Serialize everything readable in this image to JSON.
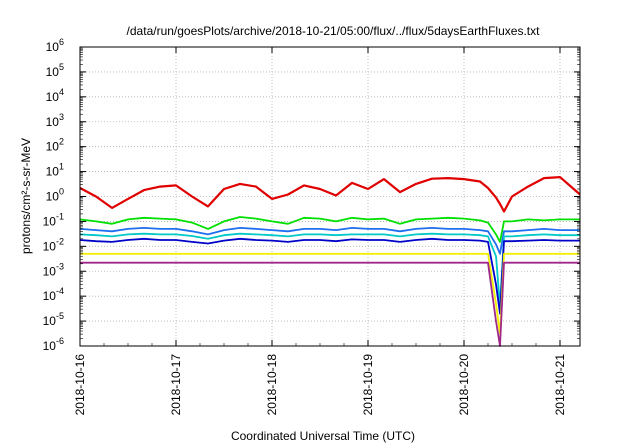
{
  "chart_data": {
    "type": "line",
    "title": "/data/run/goesPlots/archive/2018-10-21/05:00/flux/../flux/5daysEarthFluxes.txt",
    "xlabel": "Coordinated Universal Time (UTC)",
    "ylabel": "protons/cm²-s-sr-MeV",
    "yscale": "log",
    "ylim": [
      1e-06,
      1000000.0
    ],
    "xlim": [
      "2018-10-16T00:00",
      "2018-10-21T05:00"
    ],
    "grid": true,
    "legend": "none",
    "x_ticks": [
      "2018-10-16",
      "2018-10-17",
      "2018-10-18",
      "2018-10-19",
      "2018-10-20",
      "2018-10-21"
    ],
    "y_ticks": [
      {
        "base": "10",
        "exp": "-6"
      },
      {
        "base": "10",
        "exp": "-5"
      },
      {
        "base": "10",
        "exp": "-4"
      },
      {
        "base": "10",
        "exp": "-3"
      },
      {
        "base": "10",
        "exp": "-2"
      },
      {
        "base": "10",
        "exp": "-1"
      },
      {
        "base": "10",
        "exp": "0"
      },
      {
        "base": "10",
        "exp": "1"
      },
      {
        "base": "10",
        "exp": "2"
      },
      {
        "base": "10",
        "exp": "3"
      },
      {
        "base": "10",
        "exp": "4"
      },
      {
        "base": "10",
        "exp": "5"
      },
      {
        "base": "10",
        "exp": "6"
      }
    ],
    "x": [
      "2018-10-16T00:00",
      "2018-10-16T04:00",
      "2018-10-16T08:00",
      "2018-10-16T12:00",
      "2018-10-16T16:00",
      "2018-10-16T20:00",
      "2018-10-17T00:00",
      "2018-10-17T04:00",
      "2018-10-17T08:00",
      "2018-10-17T12:00",
      "2018-10-17T16:00",
      "2018-10-17T20:00",
      "2018-10-18T00:00",
      "2018-10-18T04:00",
      "2018-10-18T08:00",
      "2018-10-18T12:00",
      "2018-10-18T16:00",
      "2018-10-18T20:00",
      "2018-10-19T00:00",
      "2018-10-19T04:00",
      "2018-10-19T08:00",
      "2018-10-19T12:00",
      "2018-10-19T16:00",
      "2018-10-19T20:00",
      "2018-10-20T00:00",
      "2018-10-20T04:00",
      "2018-10-20T06:00",
      "2018-10-20T08:00",
      "2018-10-20T09:00",
      "2018-10-20T10:00",
      "2018-10-20T12:00",
      "2018-10-20T16:00",
      "2018-10-20T20:00",
      "2018-10-21T00:00",
      "2018-10-21T05:00"
    ],
    "series": [
      {
        "color": "#e00000",
        "values": [
          2.2,
          1.0,
          0.35,
          0.8,
          1.8,
          2.5,
          2.8,
          1.0,
          0.4,
          2.0,
          3.2,
          2.5,
          0.8,
          1.2,
          2.8,
          2.0,
          1.1,
          3.5,
          2.0,
          5.0,
          1.5,
          3.2,
          5.2,
          5.5,
          5.0,
          4.0,
          2.2,
          0.9,
          0.5,
          0.25,
          1.0,
          2.5,
          5.5,
          6.0,
          1.2
        ]
      },
      {
        "color": "#00e000",
        "values": [
          0.12,
          0.1,
          0.08,
          0.12,
          0.14,
          0.13,
          0.12,
          0.09,
          0.05,
          0.1,
          0.15,
          0.13,
          0.1,
          0.08,
          0.14,
          0.13,
          0.1,
          0.14,
          0.12,
          0.13,
          0.08,
          0.12,
          0.13,
          0.14,
          0.13,
          0.11,
          0.09,
          0.03,
          0.015,
          0.1,
          0.1,
          0.12,
          0.11,
          0.12,
          0.12
        ]
      },
      {
        "color": "#1e6ef0",
        "values": [
          0.05,
          0.045,
          0.04,
          0.05,
          0.055,
          0.05,
          0.05,
          0.04,
          0.03,
          0.045,
          0.055,
          0.05,
          0.045,
          0.04,
          0.05,
          0.05,
          0.045,
          0.055,
          0.05,
          0.05,
          0.04,
          0.05,
          0.055,
          0.05,
          0.05,
          0.045,
          0.04,
          0.012,
          0.005,
          0.04,
          0.04,
          0.045,
          0.05,
          0.045,
          0.045
        ]
      },
      {
        "color": "#00c8c8",
        "values": [
          0.03,
          0.028,
          0.025,
          0.03,
          0.032,
          0.03,
          0.03,
          0.026,
          0.02,
          0.028,
          0.032,
          0.03,
          0.028,
          0.025,
          0.03,
          0.03,
          0.028,
          0.03,
          0.03,
          0.03,
          0.025,
          0.03,
          0.032,
          0.03,
          0.03,
          0.028,
          0.025,
          0.004,
          4e-05,
          0.025,
          0.025,
          0.028,
          0.03,
          0.028,
          0.028
        ]
      },
      {
        "color": "#0000c8",
        "values": [
          0.018,
          0.016,
          0.015,
          0.018,
          0.02,
          0.018,
          0.018,
          0.015,
          0.013,
          0.017,
          0.02,
          0.018,
          0.017,
          0.015,
          0.018,
          0.018,
          0.016,
          0.019,
          0.018,
          0.018,
          0.015,
          0.018,
          0.02,
          0.018,
          0.018,
          0.017,
          0.015,
          0.0003,
          2e-05,
          0.016,
          0.016,
          0.017,
          0.018,
          0.017,
          0.017
        ]
      },
      {
        "color": "#f0f000",
        "values": [
          0.005,
          0.005,
          0.005,
          0.005,
          0.005,
          0.005,
          0.005,
          0.005,
          0.005,
          0.005,
          0.005,
          0.005,
          0.005,
          0.005,
          0.005,
          0.005,
          0.005,
          0.005,
          0.005,
          0.005,
          0.005,
          0.005,
          0.005,
          0.005,
          0.005,
          0.005,
          0.005,
          5e-05,
          3e-06,
          0.005,
          0.005,
          0.005,
          0.005,
          0.005,
          0.005
        ]
      },
      {
        "color": "#a0288c",
        "values": [
          0.0022,
          0.0022,
          0.0022,
          0.0022,
          0.0022,
          0.0022,
          0.0022,
          0.0022,
          0.0022,
          0.0022,
          0.0022,
          0.0022,
          0.0022,
          0.0022,
          0.0022,
          0.0022,
          0.0022,
          0.0022,
          0.0022,
          0.0022,
          0.0022,
          0.0022,
          0.0022,
          0.0022,
          0.0022,
          0.0022,
          0.0022,
          1e-05,
          1e-06,
          0.0022,
          0.0022,
          0.0022,
          0.0022,
          0.0022,
          0.0022
        ]
      }
    ]
  }
}
